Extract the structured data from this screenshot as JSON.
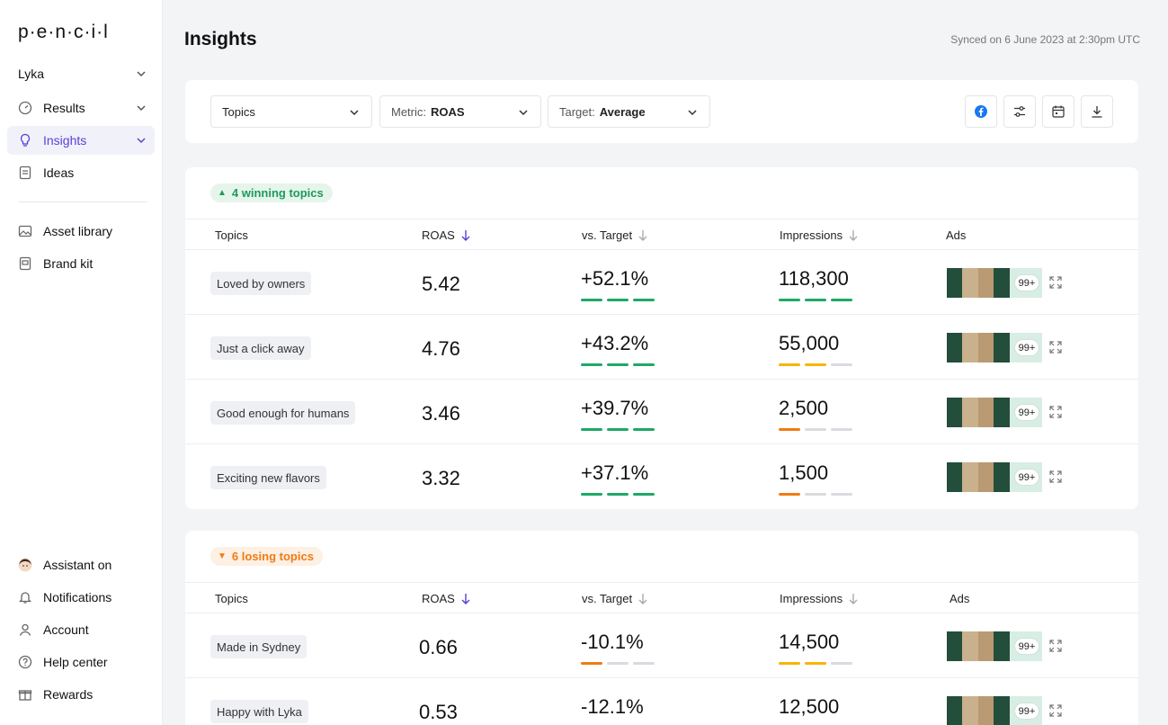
{
  "app": {
    "logo": "p·e·n·c·i·l",
    "org": "Lyka"
  },
  "sidebar": {
    "main_items": [
      {
        "label": "Results",
        "icon": "gauge-icon"
      },
      {
        "label": "Insights",
        "icon": "lightbulb-icon"
      },
      {
        "label": "Ideas",
        "icon": "document-icon"
      }
    ],
    "secondary_items": [
      {
        "label": "Asset library",
        "icon": "image-icon"
      },
      {
        "label": "Brand kit",
        "icon": "brand-kit-icon"
      }
    ],
    "bottom_items": [
      {
        "label": "Assistant on",
        "icon": "assistant-avatar"
      },
      {
        "label": "Notifications",
        "icon": "bell-icon"
      },
      {
        "label": "Account",
        "icon": "user-icon"
      },
      {
        "label": "Help center",
        "icon": "help-icon"
      },
      {
        "label": "Rewards",
        "icon": "gift-icon"
      }
    ]
  },
  "header": {
    "title": "Insights",
    "sync": "Synced on 6 June 2023 at 2:30pm UTC"
  },
  "filters": {
    "group": "Topics",
    "metric_label": "Metric:",
    "metric_value": "ROAS",
    "target_label": "Target:",
    "target_value": "Average"
  },
  "columns": {
    "topics": "Topics",
    "roas": "ROAS",
    "vs_target": "vs. Target",
    "impressions": "Impressions",
    "ads": "Ads"
  },
  "colors": {
    "accent": "#5b3fd6",
    "win": "#1e9a5a",
    "lose": "#f07b14",
    "bar_green": "#1ea966",
    "bar_yellow": "#f7b500",
    "bar_orange": "#f07b14"
  },
  "winning": {
    "badge": "4 winning topics",
    "rows": [
      {
        "topic": "Loved by owners",
        "roas": "5.42",
        "vs_target": "+52.1%",
        "impressions": "118,300",
        "ads_count": "99+"
      },
      {
        "topic": "Just a click away",
        "roas": "4.76",
        "vs_target": "+43.2%",
        "impressions": "55,000",
        "ads_count": "99+"
      },
      {
        "topic": "Good enough for humans",
        "roas": "3.46",
        "vs_target": "+39.7%",
        "impressions": "2,500",
        "ads_count": "99+"
      },
      {
        "topic": "Exciting new flavors",
        "roas": "3.32",
        "vs_target": "+37.1%",
        "impressions": "1,500",
        "ads_count": "99+"
      }
    ]
  },
  "losing": {
    "badge": "6 losing topics",
    "rows": [
      {
        "topic": "Made in Sydney",
        "roas": "0.66",
        "vs_target": "-10.1%",
        "impressions": "14,500",
        "ads_count": "99+"
      },
      {
        "topic": "Happy with Lyka",
        "roas": "0.53",
        "vs_target": "-12.1%",
        "impressions": "12,500",
        "ads_count": "99+"
      }
    ]
  }
}
